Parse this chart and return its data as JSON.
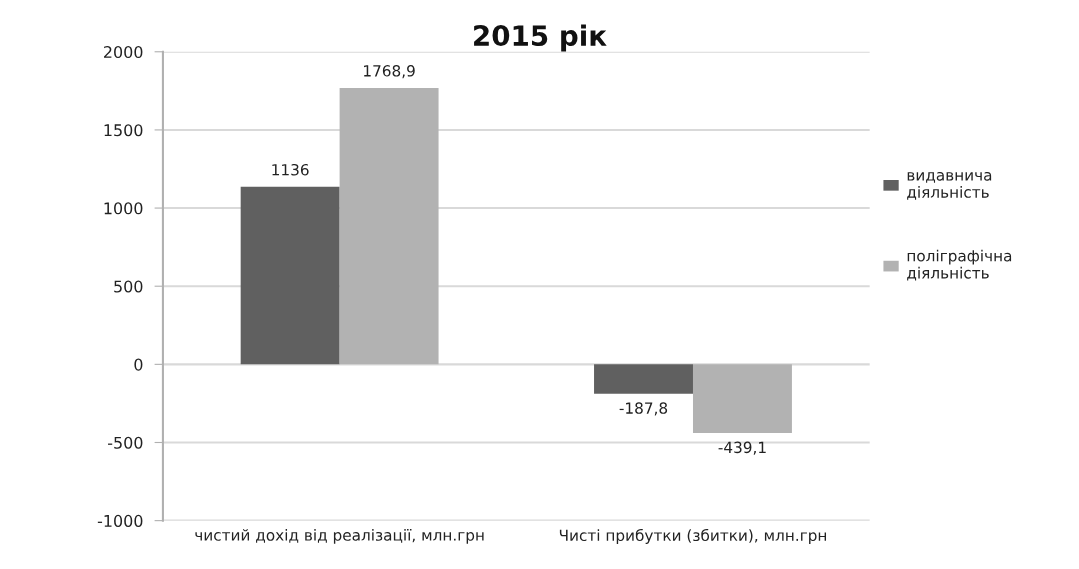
{
  "chart_data": {
    "type": "bar",
    "title": "2015 рік",
    "categories": [
      "чистий дохід від реалізації, млн.грн",
      "Чисті прибутки (збитки), млн.грн"
    ],
    "series": [
      {
        "name": "видавнича діяльність",
        "color": "#606060",
        "values": [
          1136,
          -187.8
        ],
        "value_labels": [
          "1136",
          "-187,8"
        ]
      },
      {
        "name": "поліграфічна діяльність",
        "color": "#b2b2b2",
        "values": [
          1768.9,
          -439.1
        ],
        "value_labels": [
          "1768,9",
          "-439,1"
        ]
      }
    ],
    "ylim": [
      -1000,
      2000
    ],
    "yticks": [
      -1000,
      -500,
      0,
      500,
      1000,
      1500,
      2000
    ],
    "grid": "y",
    "legend": "right"
  }
}
